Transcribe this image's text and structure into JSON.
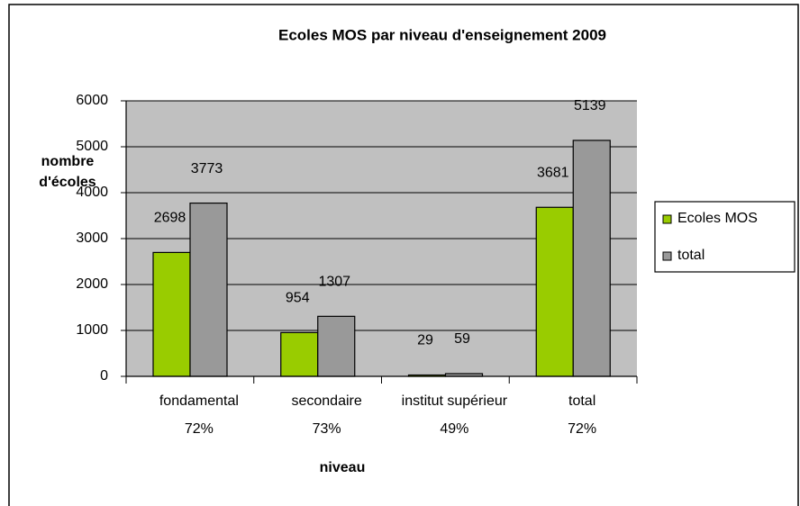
{
  "chart_data": {
    "type": "bar",
    "title": "Ecoles MOS par niveau d'enseignement 2009",
    "ylabel": [
      "nombre",
      "d'écoles"
    ],
    "xlabel": "niveau",
    "categories": [
      [
        "fondamental",
        "72%"
      ],
      [
        "secondaire",
        "73%"
      ],
      [
        "institut supérieur",
        "49%"
      ],
      [
        "total",
        "72%"
      ]
    ],
    "series": [
      {
        "name": "Ecoles MOS",
        "color": "#99cc00",
        "values": [
          2698,
          954,
          29,
          3681
        ]
      },
      {
        "name": "total",
        "color": "#999999",
        "values": [
          3773,
          1307,
          59,
          5139
        ]
      }
    ],
    "ylim": [
      0,
      6000
    ],
    "yticks": [
      0,
      1000,
      2000,
      3000,
      4000,
      5000,
      6000
    ],
    "grid": true,
    "legend": "right"
  }
}
